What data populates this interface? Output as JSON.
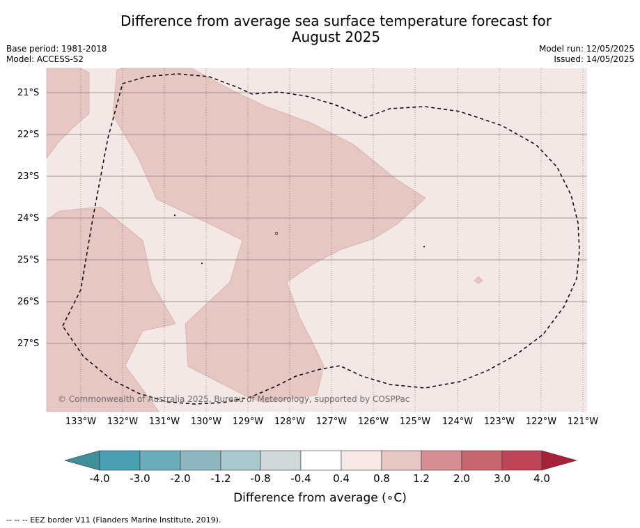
{
  "title_line1": "Difference from average sea surface temperature forecast for",
  "title_line2": "August 2025",
  "base_period": "Base period: 1981-2018",
  "model": "Model: ACCESS-S2",
  "model_run": "Model run: 12/05/2025",
  "issued": "Issued: 14/05/2025",
  "copyright": "© Commonwealth of Australia 2025, Bureau of Meteorology, supported by COSPPac",
  "lon_labels": [
    "133°W",
    "132°W",
    "131°W",
    "130°W",
    "129°W",
    "128°W",
    "127°W",
    "126°W",
    "125°W",
    "124°W",
    "123°W",
    "122°W",
    "121°W"
  ],
  "lat_labels": [
    "21°S",
    "22°S",
    "23°S",
    "24°S",
    "25°S",
    "26°S",
    "27°S"
  ],
  "colorbar": {
    "title": "Difference from average (∘C)",
    "tick_labels": [
      "-4.0",
      "-3.0",
      "-2.0",
      "-1.2",
      "-0.8",
      "-0.4",
      "0.4",
      "0.8",
      "1.2",
      "2.0",
      "3.0",
      "4.0"
    ],
    "colors": [
      "#3f8f9b",
      "#4aa0b1",
      "#6dadbb",
      "#8fb7c2",
      "#aac8cc",
      "#d0d8da",
      "#ffffff",
      "#f5e8e6",
      "#e7c7c3",
      "#d68e95",
      "#c86670",
      "#bf4558",
      "#a8203a"
    ]
  },
  "legend_marks": {
    "ocean_base": "#f4e8e6",
    "warm_patch": "#e7c7c3"
  },
  "footer": "--  --  -- EEZ border V11 (Flanders Marine Institute, 2019)."
}
